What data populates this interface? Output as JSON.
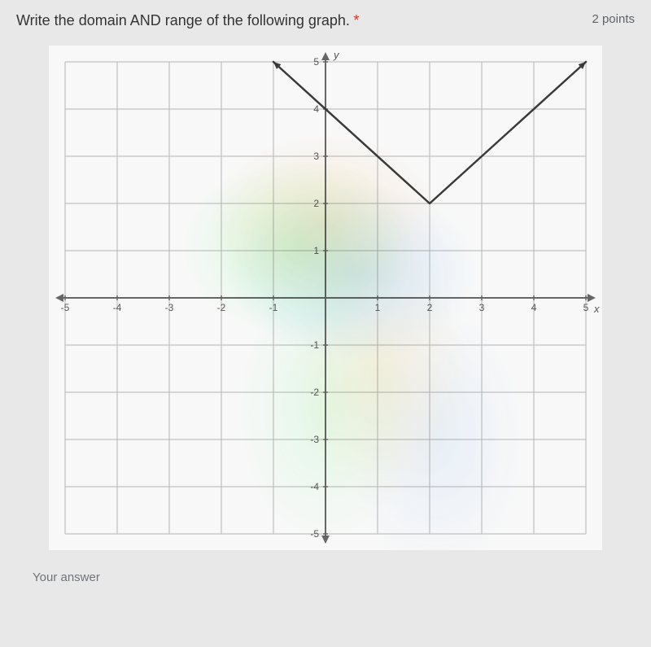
{
  "question": {
    "text": "Write the domain AND range of the following graph.",
    "required_marker": "*",
    "points": "2 points"
  },
  "chart": {
    "type": "line",
    "xlim": [
      -5,
      5
    ],
    "ylim": [
      -5,
      5
    ],
    "xtick_step": 1,
    "ytick_step": 1,
    "x_labels": [
      "-5",
      "-4",
      "-3",
      "-2",
      "-1",
      "1",
      "2",
      "3",
      "4",
      "5"
    ],
    "y_labels": [
      "-5",
      "-4",
      "-3",
      "-2",
      "-1",
      "1",
      "2",
      "3",
      "4",
      "5"
    ],
    "x_axis_label": "x",
    "y_axis_label": "y",
    "grid_color": "#b5b5b5",
    "axis_color": "#666666",
    "line_color": "#3a3a3a",
    "line_width": 2.5,
    "background_color": "#f8f8f8",
    "label_fontsize": 12,
    "axis_label_fontsize": 13,
    "tick_color": "#555555",
    "points": [
      {
        "x": -1,
        "y": 5
      },
      {
        "x": 2,
        "y": 2
      },
      {
        "x": 5,
        "y": 5
      }
    ],
    "arrows": {
      "left_end": true,
      "right_end": true
    }
  },
  "answer": {
    "placeholder": "Your answer"
  }
}
